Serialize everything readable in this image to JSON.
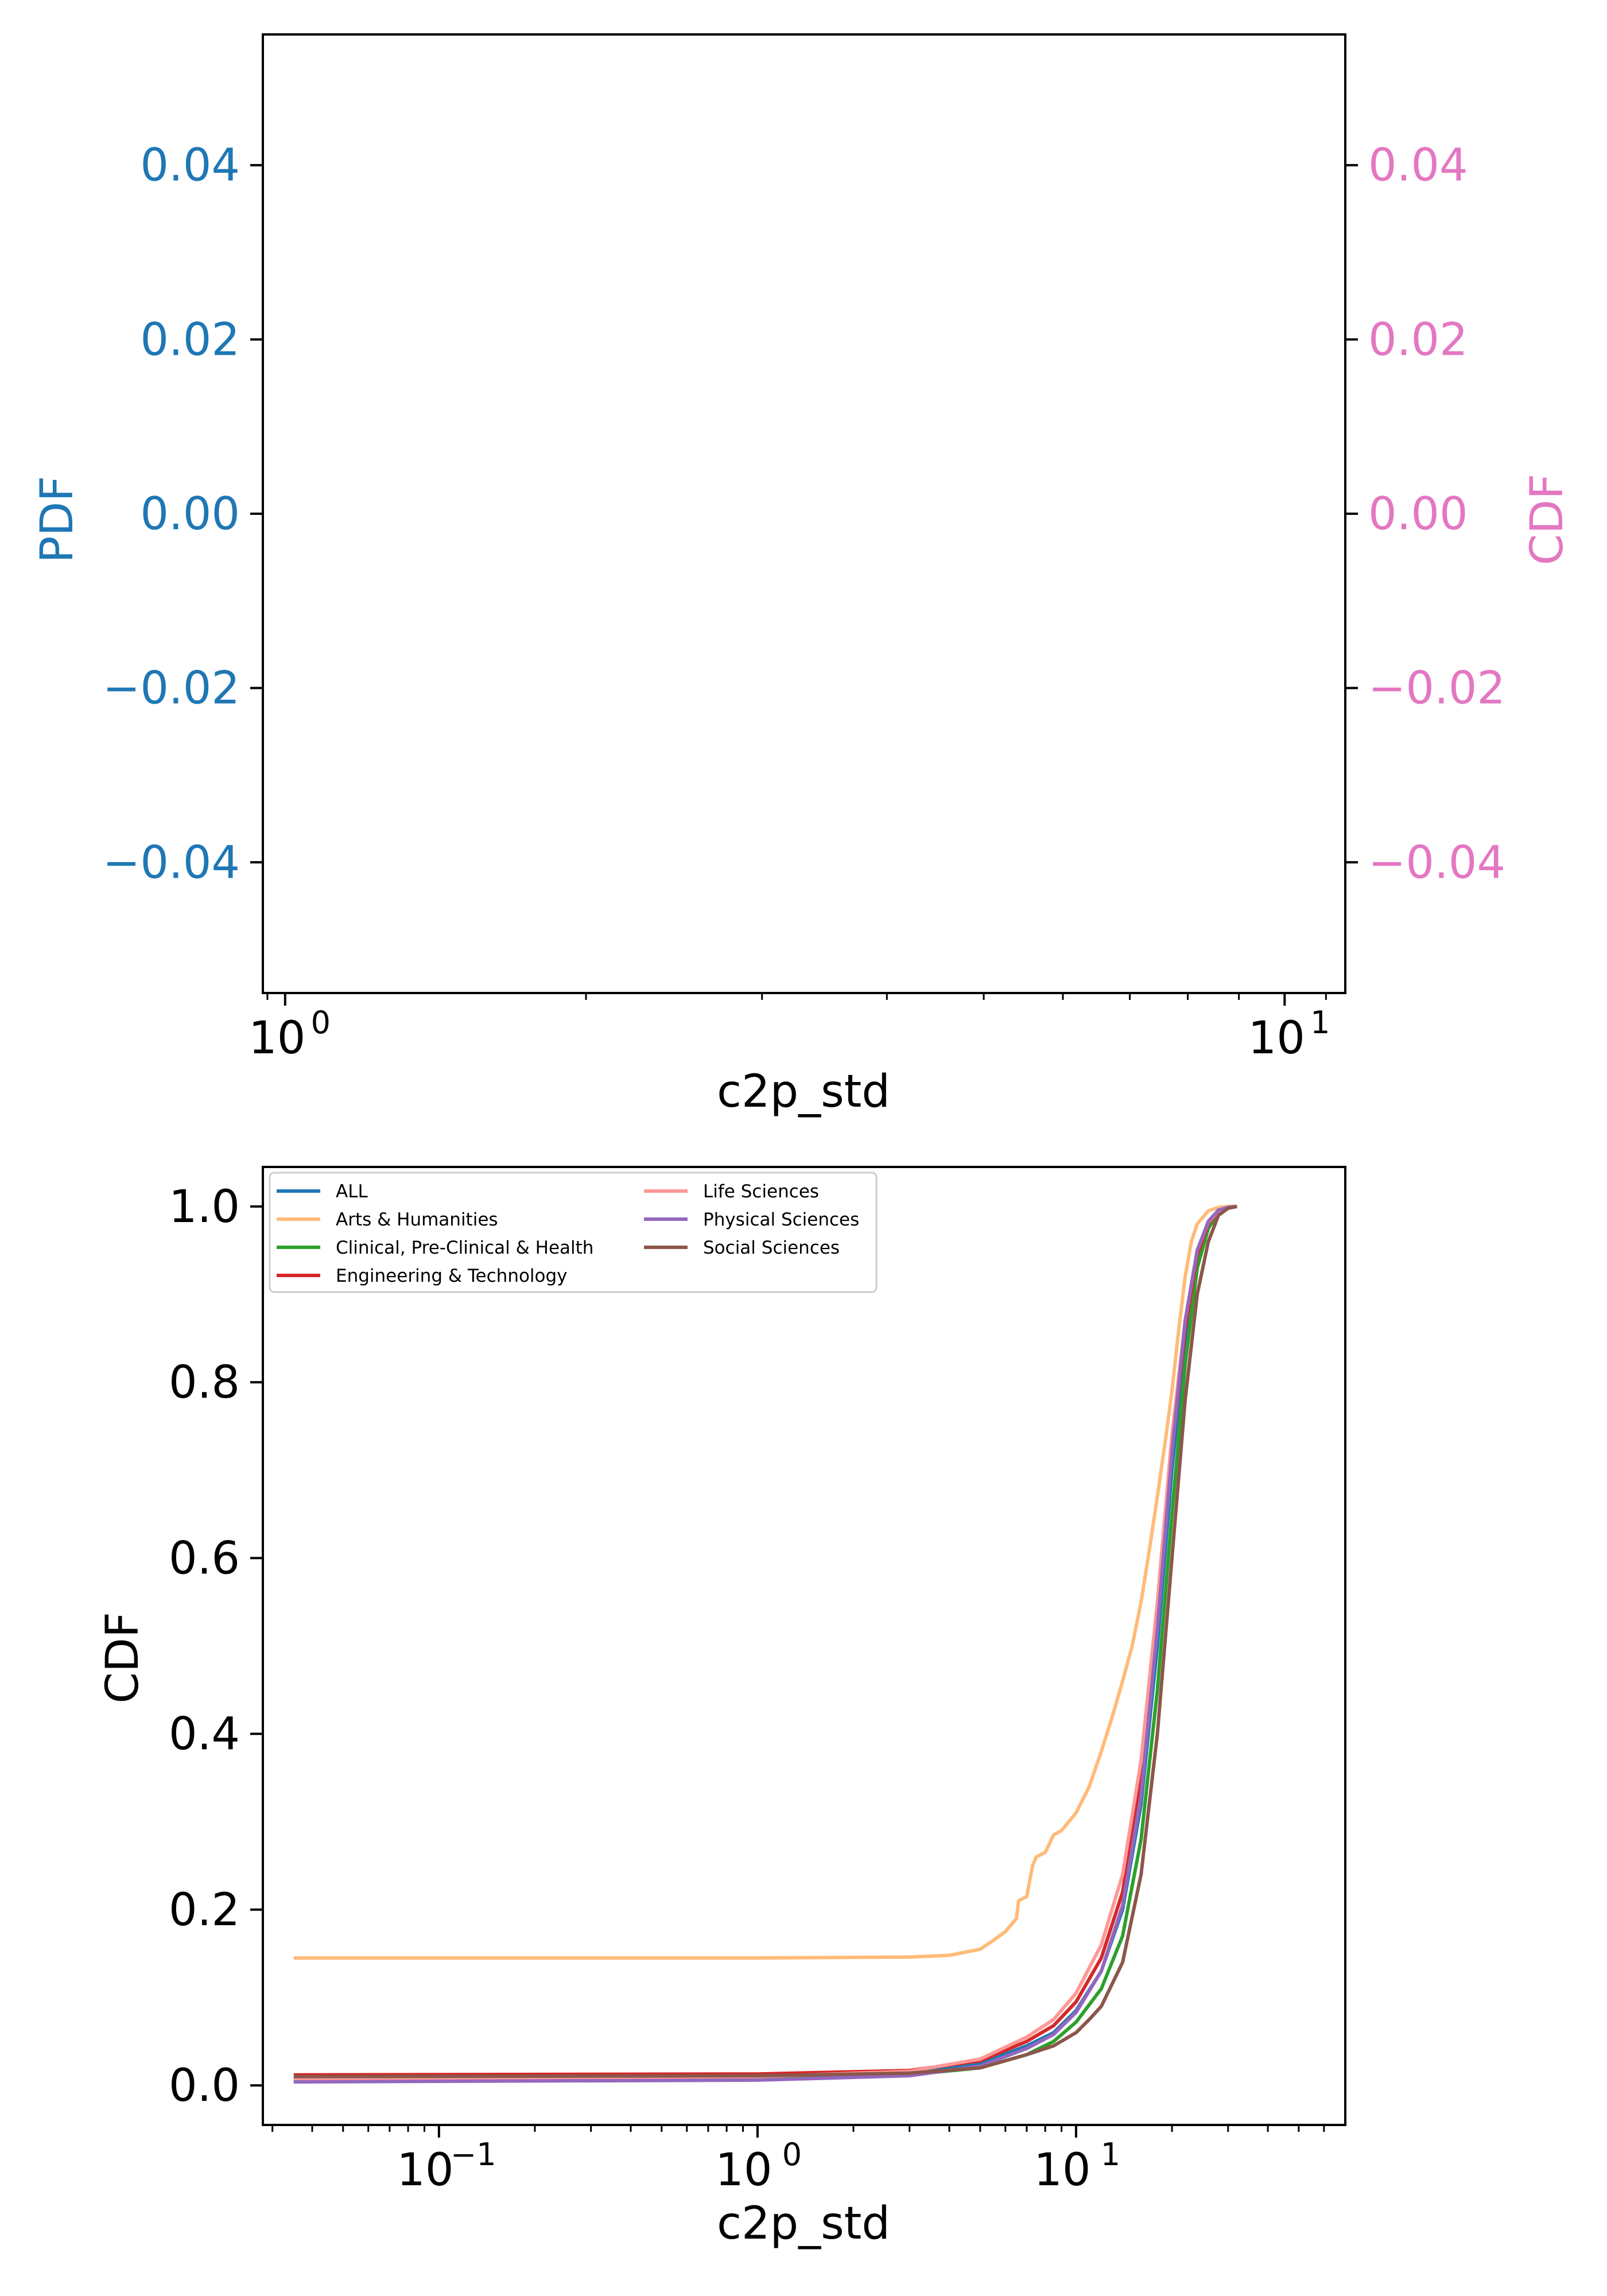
{
  "colors": {
    "pdf_axis": "#1f77b4",
    "cdf_axis": "#e377c2",
    "black": "#000000"
  },
  "chart_data": [
    {
      "type": "line",
      "title": "",
      "xlabel": "c2p_std",
      "ylabel_left": "PDF",
      "ylabel_right": "CDF",
      "xscale": "log",
      "xlim": [
        0.95,
        11.5
      ],
      "x_ticks": [
        1,
        10
      ],
      "x_tick_exponents": [
        "0",
        "1"
      ],
      "ylim_left": [
        -0.055,
        0.055
      ],
      "ylim_right": [
        -0.055,
        0.055
      ],
      "y_ticks_left": [
        {
          "value": 0.04,
          "label": "0.04"
        },
        {
          "value": 0.02,
          "label": "0.02"
        },
        {
          "value": 0.0,
          "label": "0.00"
        },
        {
          "value": -0.02,
          "label": "−0.02"
        },
        {
          "value": -0.04,
          "label": "−0.04"
        }
      ],
      "y_ticks_right": [
        {
          "value": 0.04,
          "label": "0.04"
        },
        {
          "value": 0.02,
          "label": "0.02"
        },
        {
          "value": 0.0,
          "label": "0.00"
        },
        {
          "value": -0.02,
          "label": "−0.02"
        },
        {
          "value": -0.04,
          "label": "−0.04"
        }
      ],
      "series": [],
      "grid": false
    },
    {
      "type": "line",
      "title": "",
      "xlabel": "c2p_std",
      "ylabel": "CDF",
      "xscale": "log",
      "xlim": [
        0.028,
        70
      ],
      "x_ticks": [
        0.1,
        1,
        10
      ],
      "x_tick_exponents": [
        "−1",
        "0",
        "1"
      ],
      "ylim": [
        -0.045,
        1.045
      ],
      "y_ticks": [
        {
          "value": 0.0,
          "label": "0.0"
        },
        {
          "value": 0.2,
          "label": "0.2"
        },
        {
          "value": 0.4,
          "label": "0.4"
        },
        {
          "value": 0.6,
          "label": "0.6"
        },
        {
          "value": 0.8,
          "label": "0.8"
        },
        {
          "value": 1.0,
          "label": "1.0"
        }
      ],
      "grid": false,
      "legend_position": "top-left",
      "legend_columns": 2,
      "series": [
        {
          "name": "ALL",
          "color": "#1f77b4",
          "x": [
            0.035,
            1,
            3,
            5,
            7,
            8.5,
            10,
            12,
            14,
            16,
            18,
            20,
            22,
            24,
            26,
            28,
            30,
            32
          ],
          "y": [
            0.008,
            0.01,
            0.015,
            0.025,
            0.045,
            0.06,
            0.085,
            0.13,
            0.2,
            0.32,
            0.5,
            0.7,
            0.85,
            0.94,
            0.98,
            0.995,
            0.999,
            1.0
          ]
        },
        {
          "name": "Arts & Humanities",
          "color": "#ffbb78",
          "x": [
            0.035,
            1,
            3,
            4,
            5,
            5.5,
            6,
            6.5,
            6.6,
            7,
            7.3,
            7.5,
            8,
            8.5,
            9,
            10,
            11,
            12,
            13,
            14,
            15,
            16,
            17,
            18,
            19,
            20,
            21,
            22,
            23,
            24,
            26,
            28,
            30,
            32
          ],
          "y": [
            0.145,
            0.145,
            0.146,
            0.148,
            0.155,
            0.165,
            0.175,
            0.19,
            0.21,
            0.215,
            0.25,
            0.26,
            0.265,
            0.285,
            0.29,
            0.31,
            0.34,
            0.38,
            0.42,
            0.46,
            0.5,
            0.55,
            0.61,
            0.67,
            0.73,
            0.79,
            0.86,
            0.92,
            0.96,
            0.98,
            0.995,
            0.999,
            1.0,
            1.0
          ]
        },
        {
          "name": "Clinical, Pre-Clinical & Health",
          "color": "#2ca02c",
          "x": [
            0.035,
            1,
            3,
            5,
            7,
            8.5,
            10,
            12,
            14,
            16,
            18,
            20,
            22,
            24,
            26,
            28,
            30,
            32
          ],
          "y": [
            0.005,
            0.008,
            0.012,
            0.02,
            0.035,
            0.05,
            0.072,
            0.11,
            0.17,
            0.28,
            0.45,
            0.65,
            0.82,
            0.93,
            0.975,
            0.993,
            0.999,
            1.0
          ]
        },
        {
          "name": "Engineering & Technology",
          "color": "#d62728",
          "x": [
            0.035,
            1,
            3,
            5,
            7,
            8.5,
            10,
            12,
            14,
            16,
            18,
            20,
            22,
            24,
            26,
            28,
            30,
            32
          ],
          "y": [
            0.012,
            0.013,
            0.017,
            0.028,
            0.05,
            0.068,
            0.095,
            0.145,
            0.22,
            0.35,
            0.53,
            0.72,
            0.86,
            0.945,
            0.98,
            0.995,
            0.999,
            1.0
          ]
        },
        {
          "name": "Life Sciences",
          "color": "#ff9896",
          "x": [
            0.035,
            1,
            3,
            5,
            7,
            8.5,
            10,
            12,
            14,
            16,
            18,
            20,
            22,
            24,
            26,
            28,
            30,
            32
          ],
          "y": [
            0.007,
            0.01,
            0.016,
            0.03,
            0.055,
            0.075,
            0.105,
            0.16,
            0.24,
            0.37,
            0.55,
            0.74,
            0.87,
            0.95,
            0.982,
            0.995,
            0.999,
            1.0
          ]
        },
        {
          "name": "Physical Sciences",
          "color": "#9467bd",
          "x": [
            0.035,
            1,
            3,
            5,
            7,
            8.5,
            10,
            12,
            14,
            16,
            18,
            20,
            22,
            24,
            26,
            28,
            30,
            32
          ],
          "y": [
            0.004,
            0.006,
            0.011,
            0.022,
            0.042,
            0.058,
            0.083,
            0.13,
            0.205,
            0.33,
            0.52,
            0.72,
            0.87,
            0.95,
            0.983,
            0.996,
            0.999,
            1.0
          ]
        },
        {
          "name": "Social Sciences",
          "color": "#8c564b",
          "x": [
            0.035,
            1,
            3,
            5,
            7,
            8.5,
            10,
            11,
            12,
            14,
            16,
            18,
            20,
            22,
            24,
            26,
            28,
            30,
            32
          ],
          "y": [
            0.01,
            0.011,
            0.014,
            0.02,
            0.035,
            0.045,
            0.06,
            0.075,
            0.09,
            0.14,
            0.24,
            0.4,
            0.6,
            0.78,
            0.9,
            0.96,
            0.99,
            0.998,
            1.0
          ]
        }
      ]
    }
  ]
}
